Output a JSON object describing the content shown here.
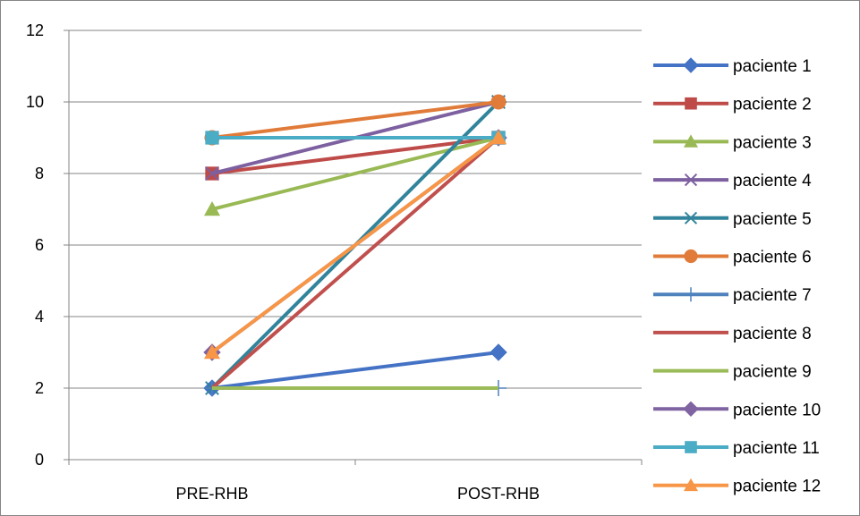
{
  "chart_data": {
    "type": "line",
    "title": "",
    "xlabel": "",
    "ylabel": "",
    "categories": [
      "PRE-RHB",
      "POST-RHB"
    ],
    "ylim": [
      0,
      12
    ],
    "yticks": [
      0,
      2,
      4,
      6,
      8,
      10,
      12
    ],
    "grid": true,
    "legend_position": "right",
    "series": [
      {
        "name": "paciente 1",
        "values": [
          2,
          3
        ],
        "color": "#4472C4",
        "marker": "diamond"
      },
      {
        "name": "paciente 2",
        "values": [
          8,
          9
        ],
        "color": "#BE4B48",
        "marker": "square"
      },
      {
        "name": "paciente 3",
        "values": [
          7,
          9
        ],
        "color": "#98B954",
        "marker": "triangle"
      },
      {
        "name": "paciente 4",
        "values": [
          8,
          10
        ],
        "color": "#7D60A0",
        "marker": "x"
      },
      {
        "name": "paciente 5",
        "values": [
          2,
          10
        ],
        "color": "#31849B",
        "marker": "star"
      },
      {
        "name": "paciente 6",
        "values": [
          9,
          10
        ],
        "color": "#E07B39",
        "marker": "circle"
      },
      {
        "name": "paciente 7",
        "values": [
          2,
          2
        ],
        "color": "#4F81BD",
        "marker": "plus"
      },
      {
        "name": "paciente 8",
        "values": [
          2,
          9
        ],
        "color": "#C0504D",
        "marker": "none"
      },
      {
        "name": "paciente 9",
        "values": [
          2,
          2
        ],
        "color": "#9BBB59",
        "marker": "none"
      },
      {
        "name": "paciente 10",
        "values": [
          3,
          9
        ],
        "color": "#8064A2",
        "marker": "diamond"
      },
      {
        "name": "paciente 11",
        "values": [
          9,
          9
        ],
        "color": "#4BACC6",
        "marker": "square"
      },
      {
        "name": "paciente 12",
        "values": [
          3,
          9
        ],
        "color": "#F79646",
        "marker": "triangle"
      }
    ]
  }
}
